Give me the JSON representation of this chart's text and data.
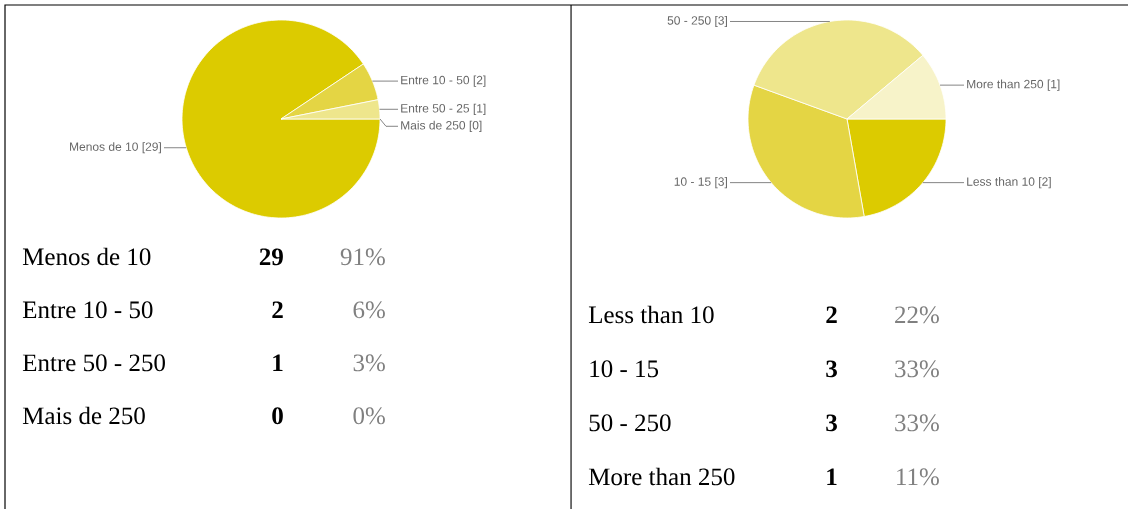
{
  "chart_data": [
    {
      "type": "pie",
      "categories": [
        "Menos de 10",
        "Entre 10 - 50",
        "Entre 50 - 25",
        "Mais de 250"
      ],
      "values": [
        29,
        2,
        1,
        0
      ],
      "colors": [
        "#dccb00",
        "#e4d544",
        "#eee68c",
        "#f7f3c9"
      ],
      "value_labels": [
        "[29]",
        "[2]",
        "[1]",
        "[0]"
      ]
    },
    {
      "type": "other",
      "categories": [
        "Menos de 10",
        "Entre 10 - 50",
        "Entre 50 - 250",
        "Mais de 250"
      ],
      "values": [
        91,
        6,
        3,
        0
      ],
      "value_labels": [
        "91%",
        "6%",
        "3%",
        "0%"
      ],
      "annotations": [
        "29",
        "2",
        "1",
        "0"
      ]
    },
    {
      "type": "pie",
      "categories": [
        "Less than 10",
        "10 - 15",
        "50 - 250",
        "More than 250"
      ],
      "values": [
        2,
        3,
        3,
        1
      ],
      "colors": [
        "#dccb00",
        "#e4d544",
        "#eee68c",
        "#f7f3c9"
      ],
      "value_labels": [
        "[2]",
        "[3]",
        "[3]",
        "[1]"
      ]
    },
    {
      "type": "other",
      "categories": [
        "Less than 10",
        "10 - 15",
        "50 - 250",
        "More than 250"
      ],
      "values": [
        22,
        33,
        33,
        11
      ],
      "value_labels": [
        "22%",
        "33%",
        "33%",
        "11%"
      ],
      "annotations": [
        "2",
        "3",
        "3",
        "1"
      ]
    }
  ]
}
